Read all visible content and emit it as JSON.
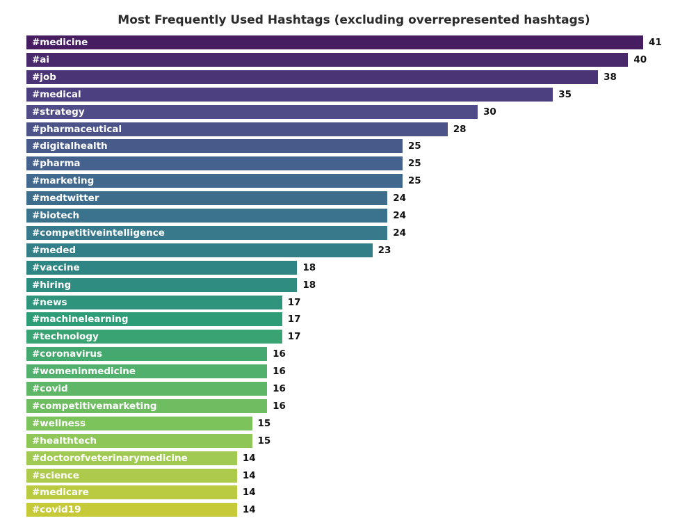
{
  "title": "Most Frequently Used Hashtags (excluding overrepresented hashtags)",
  "chart_data": {
    "type": "bar",
    "orientation": "horizontal",
    "title": "Most Frequently Used Hashtags (excluding overrepresented hashtags)",
    "xlabel": "",
    "ylabel": "",
    "xlim": [
      0,
      41
    ],
    "grid": false,
    "legend": false,
    "axes_visible": false,
    "value_labels_shown": true,
    "colormap": "viridis",
    "categories": [
      "#medicine",
      "#ai",
      "#job",
      "#medical",
      "#strategy",
      "#pharmaceutical",
      "#digitalhealth",
      "#pharma",
      "#marketing",
      "#medtwitter",
      "#biotech",
      "#competitiveintelligence",
      "#meded",
      "#vaccine",
      "#hiring",
      "#news",
      "#machinelearning",
      "#technology",
      "#coronavirus",
      "#womeninmedicine",
      "#covid",
      "#competitivemarketing",
      "#wellness",
      "#healthtech",
      "#doctorofveterinarymedicine",
      "#science",
      "#medicare",
      "#covid19"
    ],
    "values": [
      41,
      40,
      38,
      35,
      30,
      28,
      25,
      25,
      25,
      24,
      24,
      24,
      23,
      18,
      18,
      17,
      17,
      17,
      16,
      16,
      16,
      16,
      15,
      15,
      14,
      14,
      14,
      14
    ],
    "bar_colors": [
      "#471d62",
      "#49296b",
      "#4b3475",
      "#4d4080",
      "#4f4c87",
      "#4b5389",
      "#475b8b",
      "#44628d",
      "#41688d",
      "#3e6d8c",
      "#3b738c",
      "#38798c",
      "#337f88",
      "#2e8584",
      "#2e8c80",
      "#2e947b",
      "#2e9c77",
      "#39a373",
      "#45a96f",
      "#50b06c",
      "#5fb667",
      "#6ebd61",
      "#7dc35c",
      "#8ec757",
      "#a0ca52",
      "#adca4a",
      "#baca41",
      "#c6ca39"
    ],
    "label_text_color": "#ffffff",
    "value_text_color": "#111111",
    "title_color": "#2b2b2b",
    "background_color": "#ffffff"
  }
}
